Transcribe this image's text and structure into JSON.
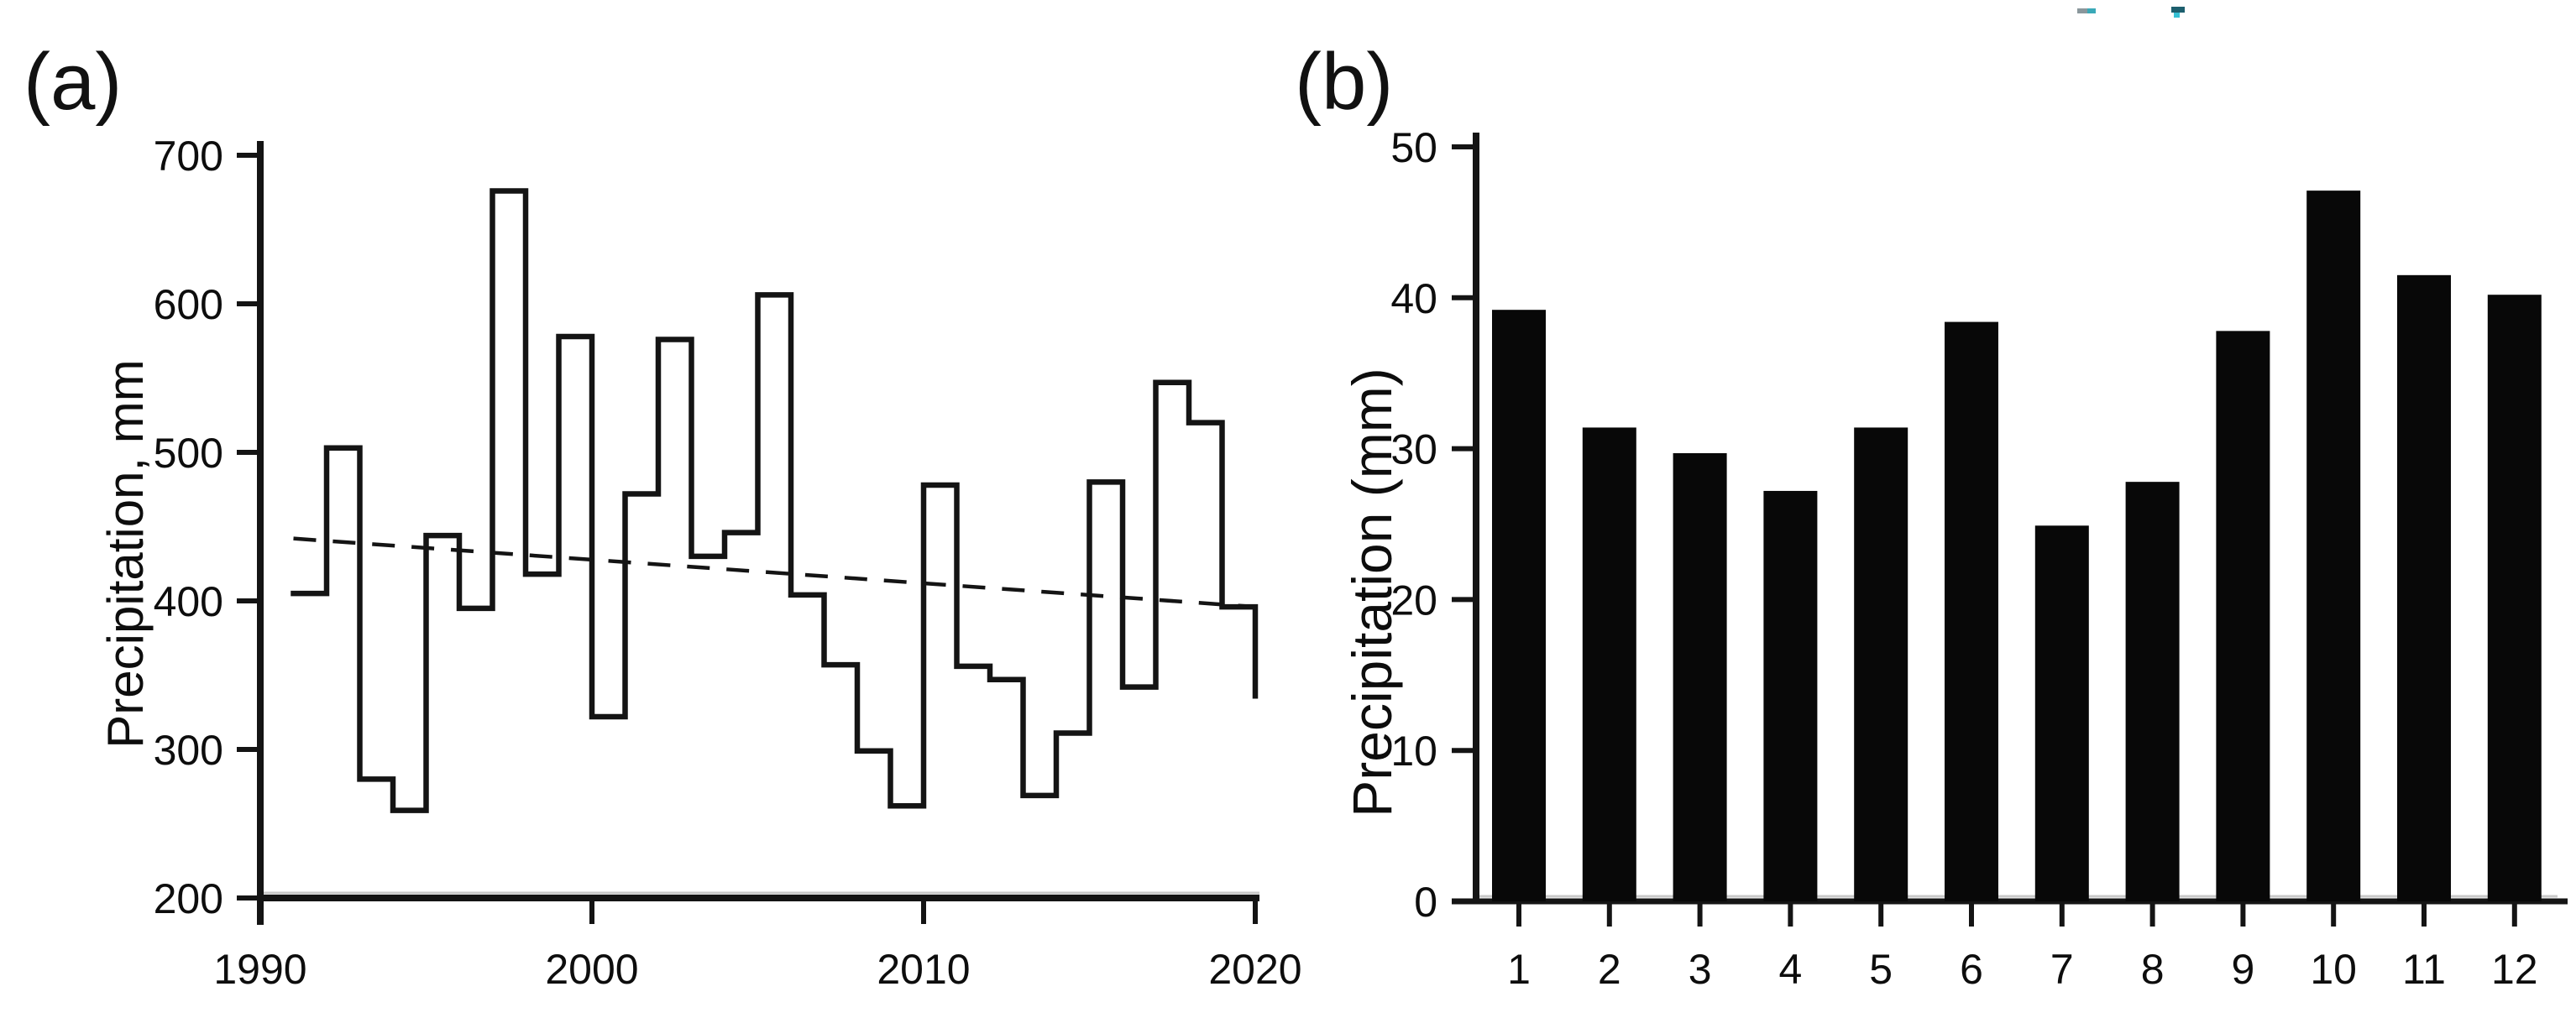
{
  "chart_data": [
    {
      "type": "line",
      "subtype": "step",
      "panel_label": "(a)",
      "title": "",
      "xlabel": "",
      "ylabel": "Precipitation, mm",
      "ylim": [
        200,
        700
      ],
      "yticks": [
        200,
        300,
        400,
        500,
        600,
        700
      ],
      "xlim": [
        1990,
        2020
      ],
      "xticks": [
        1990,
        2000,
        2010,
        2020
      ],
      "grid": false,
      "legend": "none",
      "line_color": "#141414",
      "x": [
        1991,
        1992,
        1993,
        1994,
        1995,
        1996,
        1997,
        1998,
        1999,
        2000,
        2001,
        2002,
        2003,
        2004,
        2005,
        2006,
        2007,
        2008,
        2009,
        2010,
        2011,
        2012,
        2013,
        2014,
        2015,
        2016,
        2017,
        2018,
        2019,
        2020
      ],
      "values": [
        405,
        503,
        280,
        259,
        444,
        395,
        676,
        418,
        578,
        322,
        472,
        576,
        430,
        446,
        606,
        404,
        357,
        299,
        262,
        478,
        356,
        347,
        269,
        311,
        480,
        342,
        547,
        520,
        396,
        336
      ],
      "trend_line": {
        "style": "dashed",
        "x_start": 1991,
        "value_start": 442,
        "x_end": 2020,
        "value_end": 396,
        "color": "#141414"
      }
    },
    {
      "type": "bar",
      "panel_label": "(b)",
      "title": "",
      "xlabel": "",
      "ylabel": "Precipitation (mm)",
      "ylim": [
        0,
        50
      ],
      "yticks": [
        0,
        10,
        20,
        30,
        40,
        50
      ],
      "grid": false,
      "legend": "none",
      "bar_color": "#080808",
      "categories": [
        "1",
        "2",
        "3",
        "4",
        "5",
        "6",
        "7",
        "8",
        "9",
        "10",
        "11",
        "12"
      ],
      "values": [
        39.2,
        31.4,
        29.7,
        27.2,
        31.4,
        38.4,
        24.9,
        27.8,
        37.8,
        47.1,
        41.5,
        40.2
      ]
    }
  ],
  "artifacts": {
    "description": "two small scanner marks at top right",
    "colors": [
      "#8a979c",
      "#3aa9b8",
      "#1d5f6e",
      "#35c0d4"
    ]
  }
}
